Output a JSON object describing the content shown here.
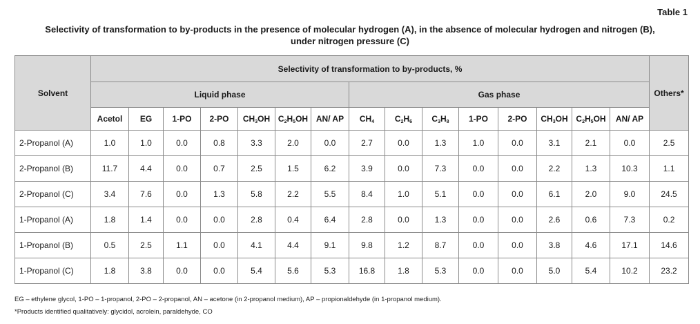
{
  "table_number": "Table 1",
  "caption_line1": "Selectivity of transformation to by-products in the presence of molecular hydrogen (A), in the absence of molecular hydrogen and nitrogen (B),",
  "caption_line2": "under nitrogen pressure (C)",
  "headers": {
    "solvent": "Solvent",
    "selectivity": "Selectivity of transformation to by-products, %",
    "liquid_phase": "Liquid phase",
    "gas_phase": "Gas phase",
    "others": "Others*"
  },
  "liquid_columns": [
    "Acetol",
    "EG",
    "1-PO",
    "2-PO",
    "CH3OH",
    "C2H5OH",
    "AN/ AP"
  ],
  "gas_columns": [
    "CH4",
    "C2H6",
    "C3H8",
    "1-PO",
    "2-PO",
    "CH3OH",
    "C2H5OH",
    "AN/ AP"
  ],
  "rows": [
    {
      "solvent": "2-Propanol (A)",
      "values": [
        "1.0",
        "1.0",
        "0.0",
        "0.8",
        "3.3",
        "2.0",
        "0.0",
        "2.7",
        "0.0",
        "1.3",
        "1.0",
        "0.0",
        "3.1",
        "2.1",
        "0.0",
        "2.5"
      ]
    },
    {
      "solvent": "2-Propanol (B)",
      "values": [
        "11.7",
        "4.4",
        "0.0",
        "0.7",
        "2.5",
        "1.5",
        "6.2",
        "3.9",
        "0.0",
        "7.3",
        "0.0",
        "0.0",
        "2.2",
        "1.3",
        "10.3",
        "1.1"
      ]
    },
    {
      "solvent": "2-Propanol (C)",
      "values": [
        "3.4",
        "7.6",
        "0.0",
        "1.3",
        "5.8",
        "2.2",
        "5.5",
        "8.4",
        "1.0",
        "5.1",
        "0.0",
        "0.0",
        "6.1",
        "2.0",
        "9.0",
        "24.5"
      ]
    },
    {
      "solvent": "1-Propanol (A)",
      "values": [
        "1.8",
        "1.4",
        "0.0",
        "0.0",
        "2.8",
        "0.4",
        "6.4",
        "2.8",
        "0.0",
        "1.3",
        "0.0",
        "0.0",
        "2.6",
        "0.6",
        "7.3",
        "0.2"
      ]
    },
    {
      "solvent": "1-Propanol (B)",
      "values": [
        "0.5",
        "2.5",
        "1.1",
        "0.0",
        "4.1",
        "4.4",
        "9.1",
        "9.8",
        "1.2",
        "8.7",
        "0.0",
        "0.0",
        "3.8",
        "4.6",
        "17.1",
        "14.6"
      ]
    },
    {
      "solvent": "1-Propanol (C)",
      "values": [
        "1.8",
        "3.8",
        "0.0",
        "0.0",
        "5.4",
        "5.6",
        "5.3",
        "16.8",
        "1.8",
        "5.3",
        "0.0",
        "0.0",
        "5.0",
        "5.4",
        "10.2",
        "23.2"
      ]
    }
  ],
  "footnote1": "EG – ethylene glycol, 1-PO – 1-propanol, 2-PO – 2-propanol, AN – acetone (in 2-propanol medium), AP – propionaldehyde (in 1-propanol medium).",
  "footnote2": "*Products identified qualitatively: glycidol, acrolein, paraldehyde, CO"
}
